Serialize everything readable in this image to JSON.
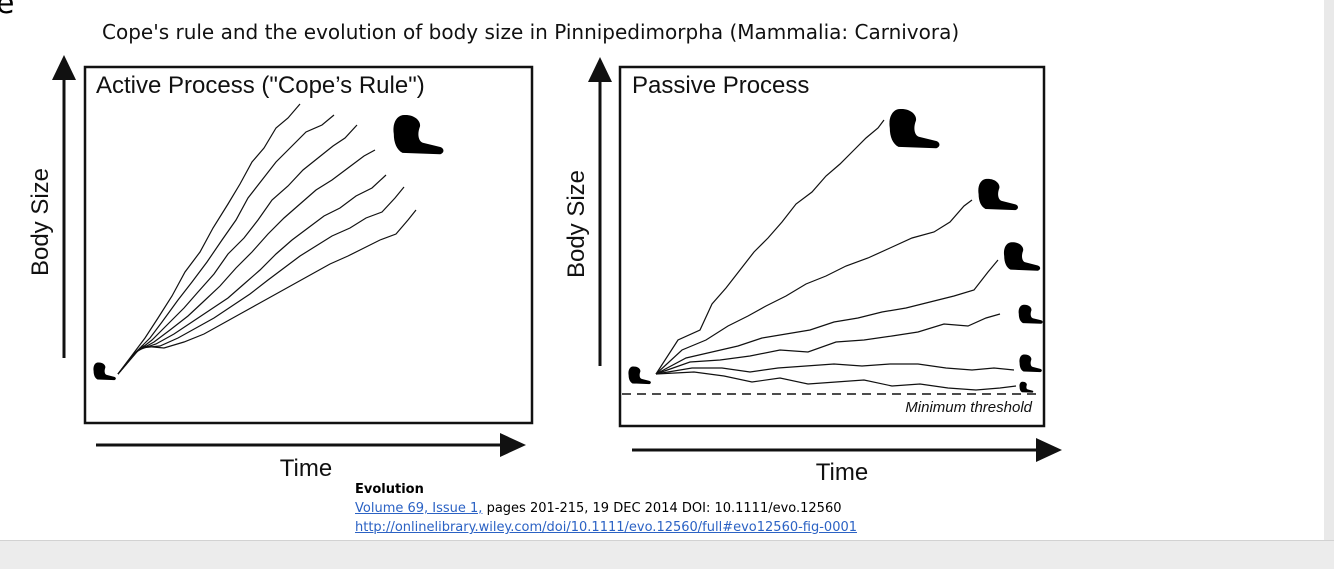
{
  "slide": {
    "edge_glyph": "e",
    "title": "Cope's rule and the evolution of body size in Pinnipedimorpha (Mammalia: Carnivora)"
  },
  "panels": {
    "active": {
      "title": "Active Process (\"Cope’s Rule\")",
      "y_axis_label": "Body Size",
      "x_axis_label": "Time"
    },
    "passive": {
      "title": "Passive Process",
      "y_axis_label": "Body Size",
      "x_axis_label": "Time",
      "threshold_label": "Minimum threshold"
    }
  },
  "icons": {
    "animal": "seal-silhouette-icon",
    "arrow": "arrow-icon"
  },
  "colors": {
    "ink": "#111111",
    "link": "#2b62c4",
    "background": "#ffffff",
    "chrome": "#ececec"
  },
  "citation": {
    "journal": "Evolution",
    "volume_link": "Volume 69, Issue 1,",
    "details": " pages 201-215, 19 DEC 2014 DOI: 10.1111/evo.12560",
    "url": "http://onlinelibrary.wiley.com/doi/10.1111/evo.12560/full#evo12560-fig-0001"
  }
}
